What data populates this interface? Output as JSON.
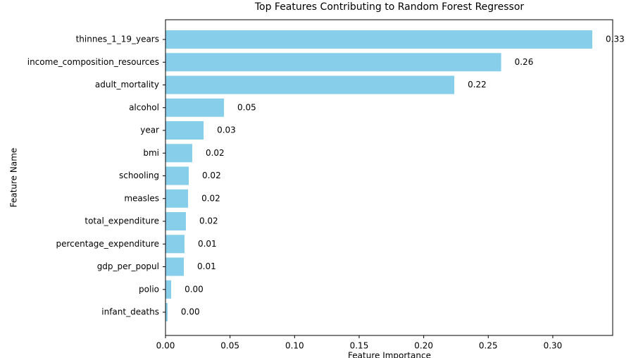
{
  "chart_data": {
    "type": "barh",
    "title": "Top Features Contributing to Random Forest Regressor",
    "x_label": "Feature Importance",
    "y_label": "Feature Name",
    "categories": [
      "thinnes_1_19_years",
      "income_composition_resources",
      "adult_mortality",
      "alcohol",
      "year",
      "bmi",
      "schooling",
      "measles",
      "total_expenditure",
      "percentage_expenditure",
      "gdp_per_popul",
      "polio",
      "infant_deaths"
    ],
    "values": [
      0.3306,
      0.26,
      0.2237,
      0.0453,
      0.0295,
      0.0207,
      0.018,
      0.0175,
      0.0158,
      0.0147,
      0.0142,
      0.0044,
      0.0016
    ],
    "value_labels": [
      "0.33",
      "0.26",
      "0.22",
      "0.05",
      "0.03",
      "0.02",
      "0.02",
      "0.02",
      "0.02",
      "0.01",
      "0.01",
      "0.00",
      "0.00"
    ],
    "color": "#87ceeb",
    "xlim": [
      0,
      0.3464
    ],
    "xticks": [
      {
        "value": 0,
        "label": "0.00"
      },
      {
        "value": 0.05,
        "label": "0.05"
      },
      {
        "value": 0.1,
        "label": "0.10"
      },
      {
        "value": 0.15,
        "label": "0.15"
      },
      {
        "value": 0.2,
        "label": "0.20"
      },
      {
        "value": 0.25,
        "label": "0.25"
      },
      {
        "value": 0.3,
        "label": "0.30"
      }
    ]
  }
}
